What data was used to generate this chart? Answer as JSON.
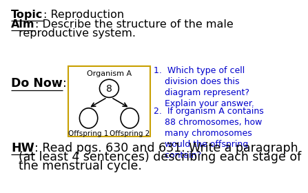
{
  "topic_bold": "Topic",
  "topic_rest": ": Reproduction",
  "aim_bold": "Aim",
  "aim_rest": ": Describe the structure of the male",
  "aim_rest2": "reproductive system.",
  "donow_bold": "Do Now",
  "donow_rest": ":",
  "hw_bold": "HW",
  "hw_rest": ": Read pgs. 630 and 631. Write a paragraph",
  "hw_rest2": "(at least 4 sentences) describing each stage of",
  "hw_rest3": "the menstrual cycle.",
  "q1_line1": "1.  Which type of cell",
  "q1_line2": "    division does this",
  "q1_line3": "    diagram represent?",
  "q1_line4": "    Explain your answer.",
  "q2_line1": "2.  If organism A contains",
  "q2_line2": "    88 chromosomes, how",
  "q2_line3": "    many chromosomes",
  "q2_line4": "    would the offspring",
  "q2_line5": "    contain?",
  "organism_label": "Organism A",
  "organism_number": "8",
  "offspring1_label": "Offspring 1",
  "offspring2_label": "Offspring 2",
  "box_color": "#c8a000",
  "text_color_blue": "#0000cc",
  "text_color_black": "#000000",
  "bg_color": "#ffffff",
  "fs_main": 11.5,
  "fs_hw": 12.5,
  "fs_q": 9.0,
  "fs_diagram": 8.0,
  "fs_num": 10.0
}
